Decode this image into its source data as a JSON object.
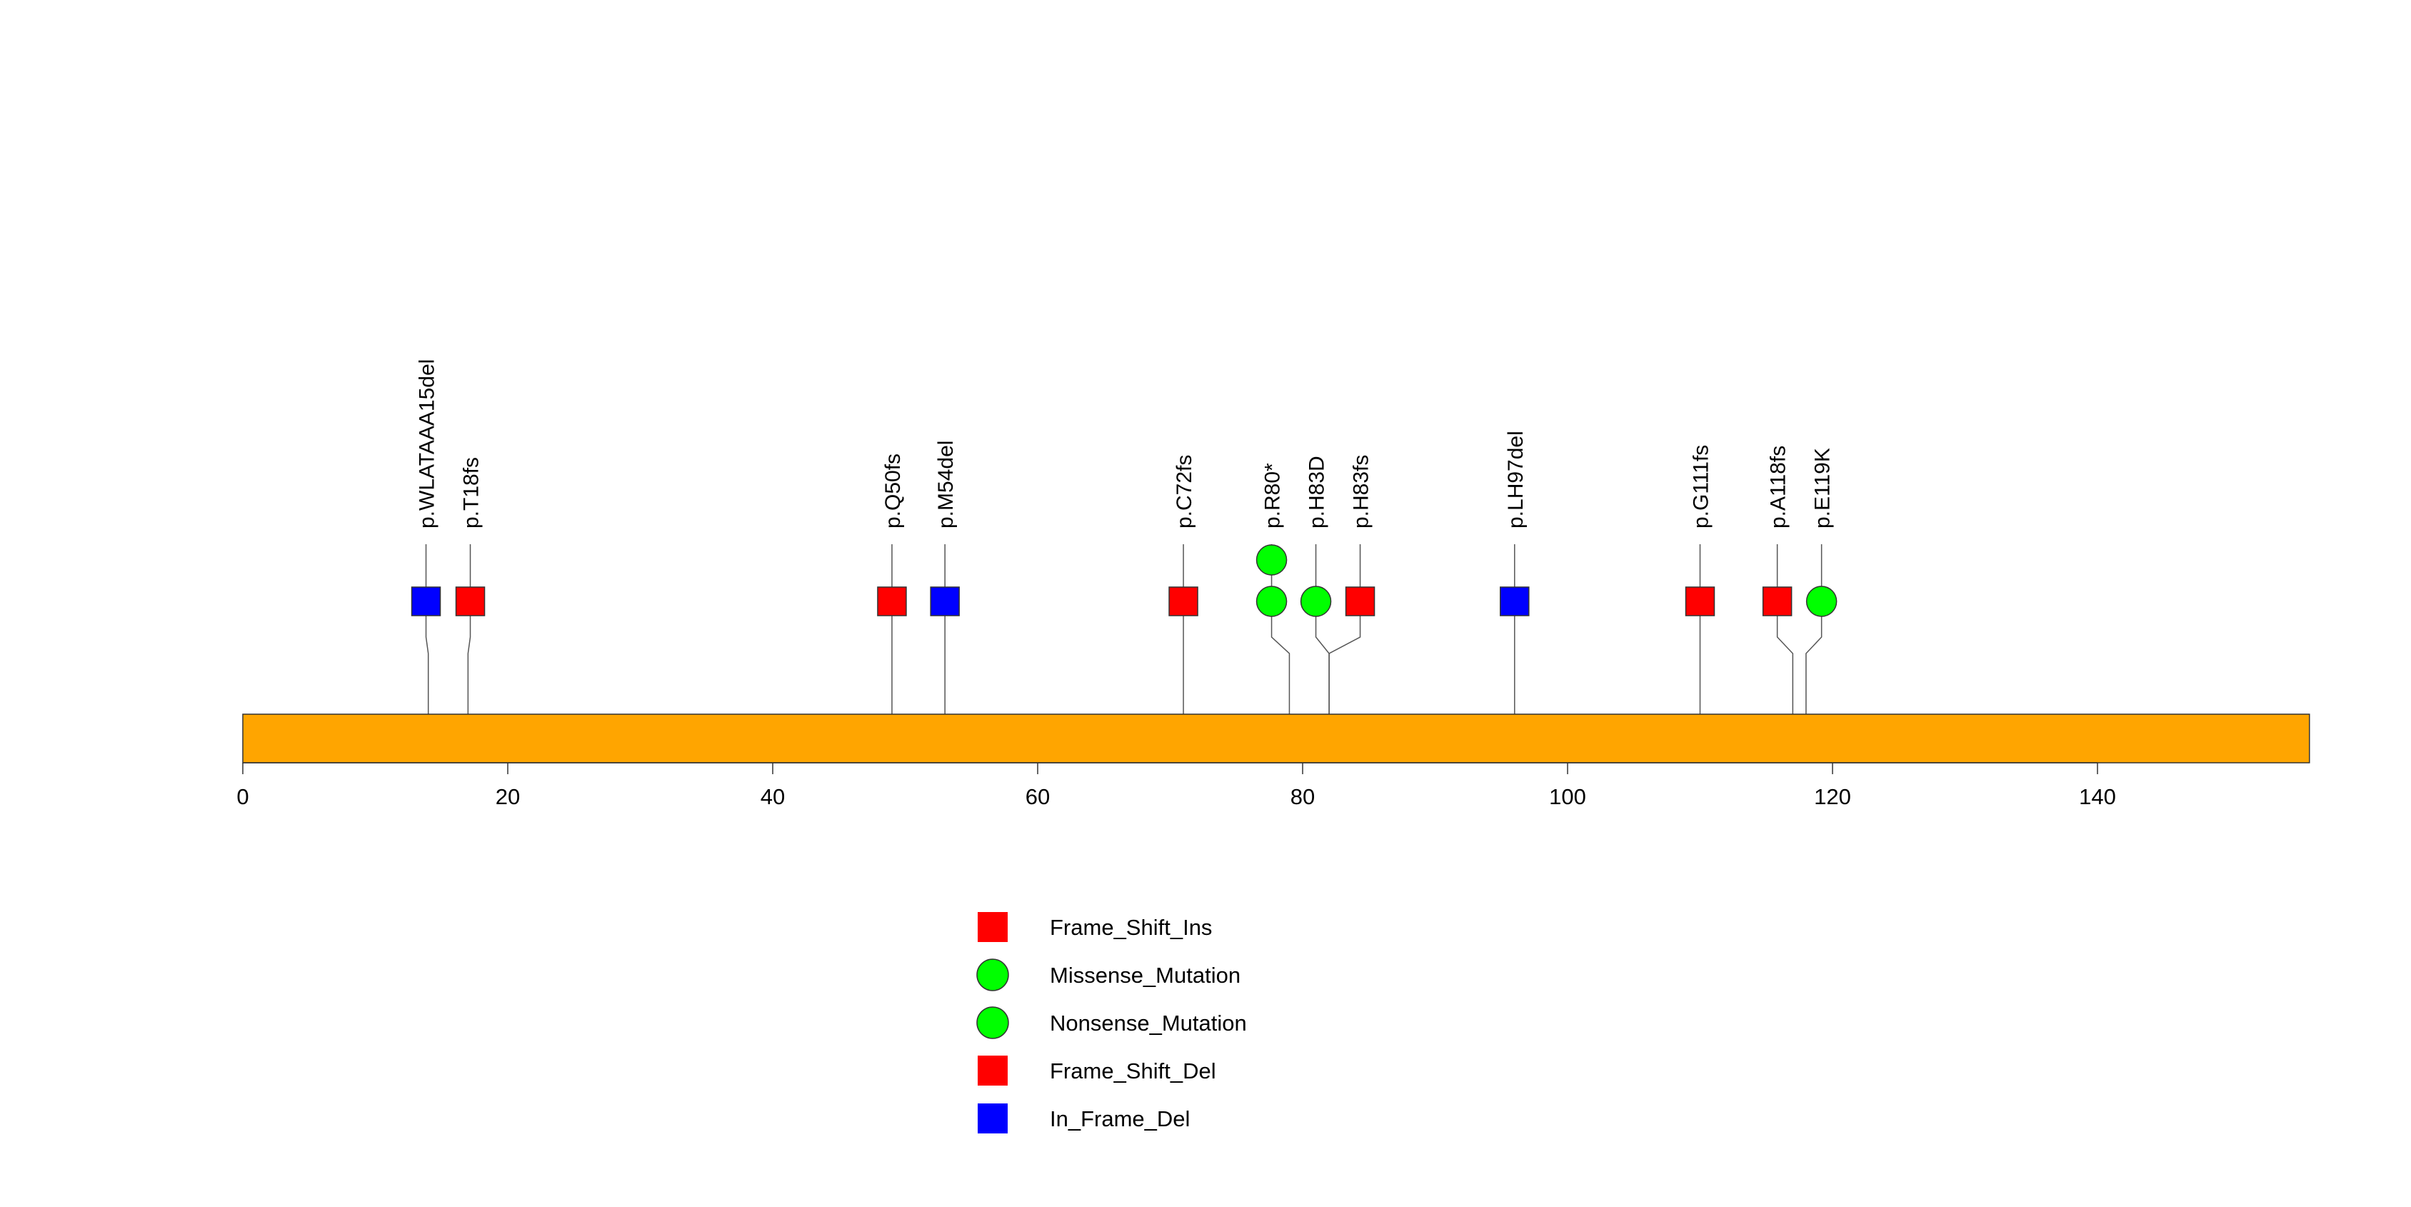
{
  "chart_data": {
    "type": "lollipop",
    "title": "",
    "xlabel": "",
    "ylabel": "",
    "protein_length": 156,
    "xlim": [
      0,
      156
    ],
    "x_ticks": [
      0,
      20,
      40,
      60,
      80,
      100,
      120,
      140
    ],
    "x_tick_labels": [
      "0",
      "20",
      "40",
      "60",
      "80",
      "100",
      "120",
      "140"
    ],
    "domain_color": "#FFA500",
    "mutations": [
      {
        "label": "p.WLATAAA15del",
        "position": 14,
        "type": "In_Frame_Del",
        "count": 1
      },
      {
        "label": "p.T18fs",
        "position": 17,
        "type": "Frame_Shift_Del",
        "count": 1
      },
      {
        "label": "p.Q50fs",
        "position": 49,
        "type": "Frame_Shift_Del",
        "count": 1
      },
      {
        "label": "p.M54del",
        "position": 53,
        "type": "In_Frame_Del",
        "count": 1
      },
      {
        "label": "p.C72fs",
        "position": 71,
        "type": "Frame_Shift_Ins",
        "count": 1
      },
      {
        "label": "p.R80*",
        "position": 79,
        "type": "Nonsense_Mutation",
        "count": 2
      },
      {
        "label": "p.H83D",
        "position": 82,
        "type": "Missense_Mutation",
        "count": 1
      },
      {
        "label": "p.H83fs",
        "position": 82,
        "type": "Frame_Shift_Del",
        "count": 1
      },
      {
        "label": "p.LH97del",
        "position": 96,
        "type": "In_Frame_Del",
        "count": 1
      },
      {
        "label": "p.G111fs",
        "position": 110,
        "type": "Frame_Shift_Del",
        "count": 1
      },
      {
        "label": "p.A118fs",
        "position": 117,
        "type": "Frame_Shift_Del",
        "count": 1
      },
      {
        "label": "p.E119K",
        "position": 118,
        "type": "Missense_Mutation",
        "count": 1
      }
    ],
    "legend": [
      {
        "label": "Frame_Shift_Ins",
        "shape": "square",
        "color": "#FF0000"
      },
      {
        "label": "Missense_Mutation",
        "shape": "circle",
        "color": "#00FF00"
      },
      {
        "label": "Nonsense_Mutation",
        "shape": "circle",
        "color": "#00FF00"
      },
      {
        "label": "Frame_Shift_Del",
        "shape": "square",
        "color": "#FF0000"
      },
      {
        "label": "In_Frame_Del",
        "shape": "square",
        "color": "#0000FF"
      }
    ],
    "legend_placement": "bottom-center"
  }
}
